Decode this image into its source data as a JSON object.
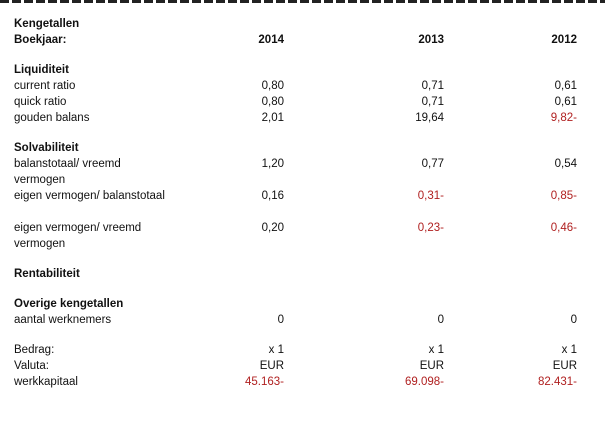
{
  "header": {
    "title": "Kengetallen",
    "year_label": "Boekjaar:",
    "years": [
      "2014",
      "2013",
      "2012"
    ]
  },
  "liquiditeit": {
    "title": "Liquiditeit",
    "rows": [
      {
        "label": "current ratio",
        "values": [
          "0,80",
          "0,71",
          "0,61"
        ]
      },
      {
        "label": "quick ratio",
        "values": [
          "0,80",
          "0,71",
          "0,61"
        ]
      },
      {
        "label": "gouden balans",
        "values": [
          "2,01",
          "19,64",
          "9,82-"
        ]
      }
    ]
  },
  "solvabiliteit": {
    "title": "Solvabiliteit",
    "rows": [
      {
        "label": "balanstotaal/ vreemd vermogen",
        "values": [
          "1,20",
          "0,77",
          "0,54"
        ]
      },
      {
        "label": "eigen vermogen/ balanstotaal",
        "values": [
          "0,16",
          "0,31-",
          "0,85-"
        ]
      },
      {
        "label": "eigen vermogen/ vreemd vermogen",
        "values": [
          "0,20",
          "0,23-",
          "0,46-"
        ]
      }
    ]
  },
  "rentabiliteit": {
    "title": "Rentabiliteit"
  },
  "overige": {
    "title": "Overige kengetallen",
    "rows": [
      {
        "label": "aantal werknemers",
        "values": [
          "0",
          "0",
          "0"
        ]
      }
    ]
  },
  "footer": {
    "rows": [
      {
        "label": "Bedrag:",
        "values": [
          "x 1",
          "x 1",
          "x 1"
        ]
      },
      {
        "label": "Valuta:",
        "values": [
          "EUR",
          "EUR",
          "EUR"
        ]
      },
      {
        "label": "werkkapitaal",
        "values": [
          "45.163-",
          "69.098-",
          "82.431-"
        ]
      }
    ]
  },
  "colors": {
    "negative": "#b02020",
    "text": "#111111"
  }
}
